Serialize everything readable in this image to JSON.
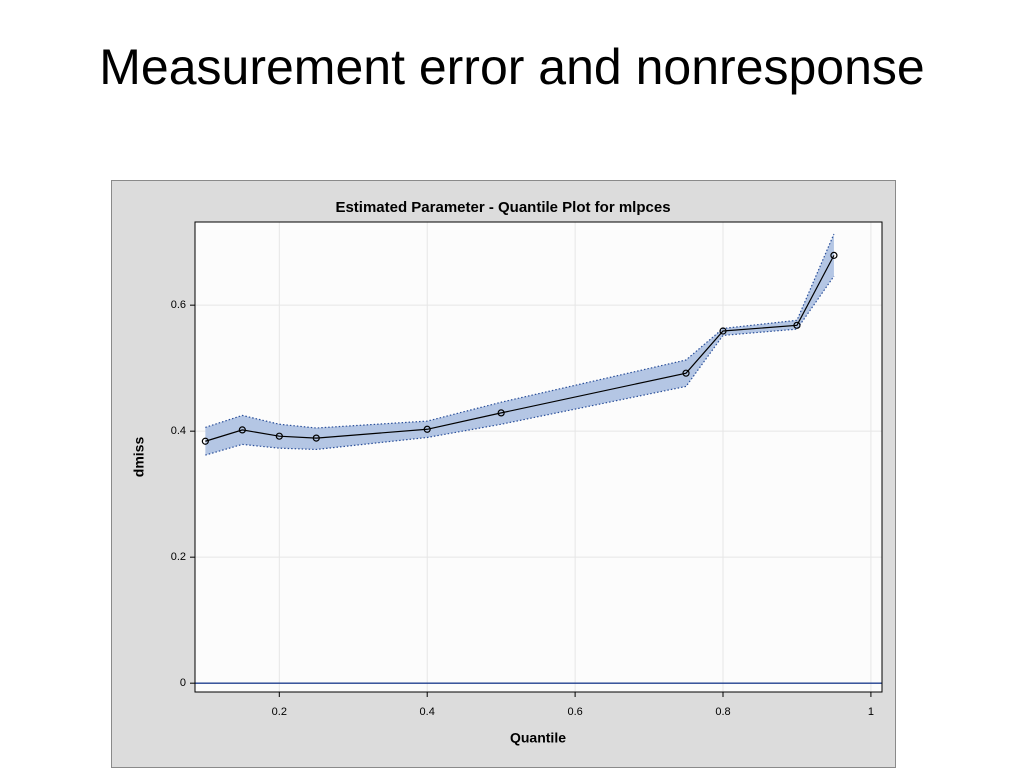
{
  "slide_title": "Measurement error and nonresponse",
  "chart_data": {
    "type": "line",
    "title": "Estimated Parameter - Quantile Plot for mlpces",
    "x_label": "Quantile",
    "y_label": "dmiss",
    "x": [
      0.1,
      0.15,
      0.2,
      0.25,
      0.4,
      0.5,
      0.75,
      0.8,
      0.9,
      0.95
    ],
    "values": [
      0.384,
      0.402,
      0.392,
      0.389,
      0.403,
      0.429,
      0.492,
      0.559,
      0.568,
      0.679
    ],
    "upper": [
      0.406,
      0.425,
      0.411,
      0.405,
      0.416,
      0.446,
      0.513,
      0.563,
      0.576,
      0.713
    ],
    "lower": [
      0.362,
      0.379,
      0.373,
      0.371,
      0.39,
      0.411,
      0.471,
      0.552,
      0.562,
      0.646
    ],
    "color": "#000000",
    "band_color": "#b4c6e4",
    "band_line_color": "#2a4f9a",
    "reference_line": 0,
    "reference_color": "#1f3f8f",
    "xlim": [
      0.086,
      1.015
    ],
    "ylim": [
      -0.014,
      0.732
    ],
    "xticks": [
      0.2,
      0.4,
      0.6,
      0.8,
      1
    ],
    "yticks": [
      0,
      0.2,
      0.4,
      0.6
    ],
    "grid": true
  }
}
